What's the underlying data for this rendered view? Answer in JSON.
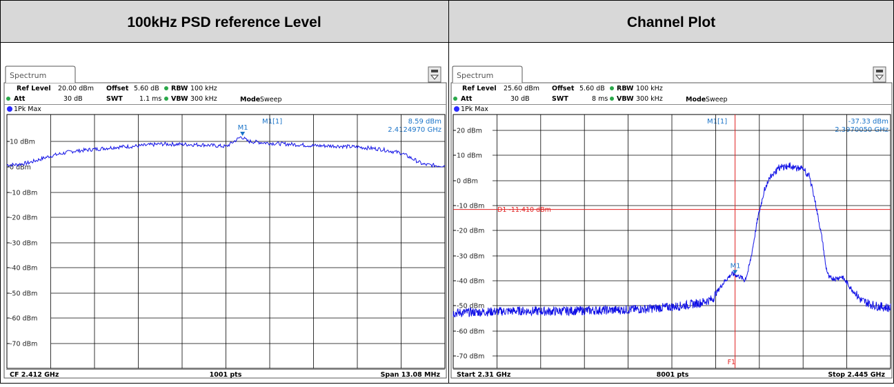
{
  "colors": {
    "header_bg": "#d8d8d8",
    "trace": "#1010e6",
    "marker": "#1a73c8",
    "display_line": "#e02020",
    "grid": "#000000",
    "dot": "#2a2aff",
    "led": "#2aa84a"
  },
  "panels": [
    {
      "header": "100kHz PSD reference Level",
      "tab_label": "Spectrum",
      "ref_level_label": "Ref Level",
      "ref_level_value": "20.00 dBm",
      "offset_label": "Offset",
      "offset_value": "5.60 dB",
      "rbw_label": "RBW",
      "rbw_value": "100 kHz",
      "att_label": "Att",
      "att_value": "30 dB",
      "swt_label": "SWT",
      "swt_value": "1.1 ms",
      "vbw_label": "VBW",
      "vbw_value": "300 kHz",
      "mode_label": "Mode",
      "mode_value": "Sweep",
      "trace_label": "1Pk Max",
      "marker_name": "M1[1]",
      "marker_level": "8.59 dBm",
      "marker_freq": "2.4124970 GHz",
      "marker_tag": "M1",
      "footer_left": "CF 2.412 GHz",
      "footer_center": "1001 pts",
      "footer_right": "Span 13.08 MHz",
      "y_ticks": [
        "10 dBm",
        "0 dBm",
        "-10 dBm",
        "-20 dBm",
        "-30 dBm",
        "-40 dBm",
        "-50 dBm",
        "-60 dBm",
        "-70 dBm"
      ]
    },
    {
      "header": "Channel Plot",
      "tab_label": "Spectrum",
      "ref_level_label": "Ref Level",
      "ref_level_value": "25.60 dBm",
      "offset_label": "Offset",
      "offset_value": "5.60 dB",
      "rbw_label": "RBW",
      "rbw_value": "100 kHz",
      "att_label": "Att",
      "att_value": "30 dB",
      "swt_label": "SWT",
      "swt_value": "8 ms",
      "vbw_label": "VBW",
      "vbw_value": "300 kHz",
      "mode_label": "Mode",
      "mode_value": "Sweep",
      "trace_label": "1Pk Max",
      "marker_name": "M1[1]",
      "marker_level": "-37.33 dBm",
      "marker_freq": "2.3970050 GHz",
      "marker_tag": "M1",
      "display_line_label": "D1  -11.410 dBm",
      "freq_line_label": "F1",
      "footer_left": "Start 2.31 GHz",
      "footer_center": "8001 pts",
      "footer_right": "Stop 2.445 GHz",
      "y_ticks": [
        "20 dBm",
        "10 dBm",
        "0 dBm",
        "-10 dBm",
        "-20 dBm",
        "-30 dBm",
        "-40 dBm",
        "-50 dBm",
        "-60 dBm",
        "-70 dBm"
      ]
    }
  ],
  "chart_data": [
    {
      "type": "line",
      "title": "100kHz PSD reference Level",
      "xlabel": "",
      "ylabel": "",
      "x_unit": "GHz",
      "xlim": [
        2.40546,
        2.41854
      ],
      "ylim": [
        -75.4,
        16.6
      ],
      "grid": true,
      "series": [
        {
          "x": [
            2.40546,
            2.40572,
            2.40611,
            2.40677,
            2.40742,
            2.40808,
            2.40873,
            2.40939,
            2.41004,
            2.4107,
            2.41135,
            2.41201,
            2.41246,
            2.41266,
            2.41332,
            2.41397,
            2.41463,
            2.41528,
            2.41594,
            2.41659,
            2.41725,
            2.4179,
            2.41829,
            2.41854
          ],
          "y": [
            -1.6,
            -1.6,
            -0.9,
            1.6,
            3.3,
            4.0,
            4.8,
            5.2,
            5.9,
            5.8,
            5.6,
            5.0,
            8.59,
            6.9,
            6.2,
            5.8,
            5.3,
            5.2,
            4.8,
            4.1,
            2.6,
            -1.5,
            -1.9,
            -1.9
          ]
        }
      ],
      "markers": [
        {
          "name": "M1",
          "x": 2.412497,
          "y": 8.59
        }
      ]
    },
    {
      "type": "line",
      "title": "Channel Plot",
      "xlabel": "",
      "ylabel": "",
      "x_unit": "GHz",
      "xlim": [
        2.31,
        2.445
      ],
      "ylim": [
        -74.4,
        26.2
      ],
      "grid": true,
      "display_line": -11.41,
      "series": [
        {
          "x": [
            2.31,
            2.32,
            2.33,
            2.34,
            2.35,
            2.36,
            2.37,
            2.38,
            2.386,
            2.39,
            2.392,
            2.394,
            2.396,
            2.397,
            2.3985,
            2.4,
            2.401,
            2.402,
            2.404,
            2.406,
            2.408,
            2.41,
            2.412,
            2.414,
            2.416,
            2.418,
            2.42,
            2.421,
            2.422,
            2.424,
            2.425,
            2.426,
            2.428,
            2.43,
            2.433,
            2.436,
            2.44,
            2.445
          ],
          "y": [
            -52.4,
            -52.0,
            -51.6,
            -51.8,
            -51.5,
            -51.3,
            -50.8,
            -49.7,
            -48.5,
            -47.0,
            -43.0,
            -39.5,
            -37.0,
            -37.33,
            -38.0,
            -39.5,
            -36.0,
            -30.0,
            -15.0,
            -4.0,
            2.0,
            4.5,
            5.5,
            5.7,
            5.2,
            4.5,
            1.5,
            -4.0,
            -10.0,
            -24.0,
            -34.0,
            -38.5,
            -38.8,
            -38.0,
            -43.0,
            -47.5,
            -49.5,
            -50.5
          ]
        }
      ],
      "markers": [
        {
          "name": "M1",
          "x": 2.397005,
          "y": -37.33
        }
      ]
    }
  ]
}
